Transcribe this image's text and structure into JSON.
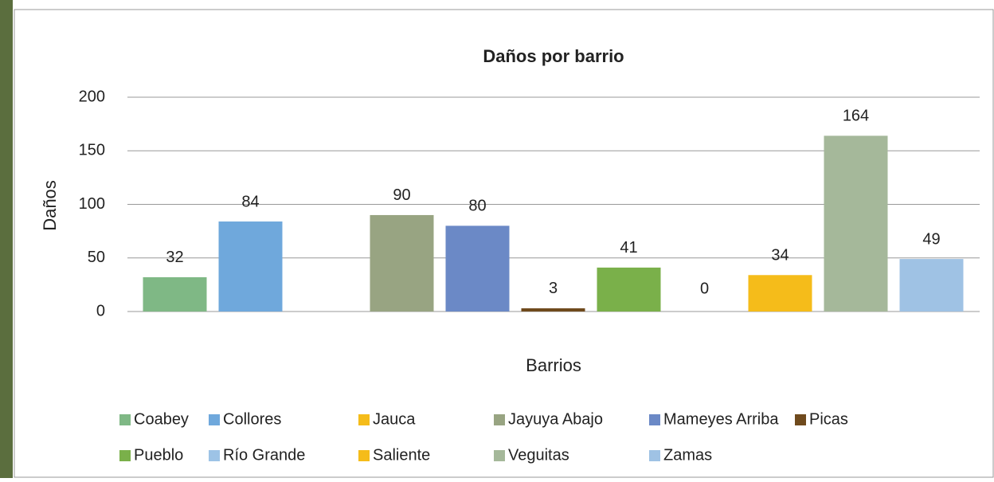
{
  "chart_data": {
    "type": "bar",
    "title": "Daños por barrio",
    "x_label": "Barrios",
    "y_label": "Daños",
    "categories": [
      "Coabey",
      "Collores",
      "Jauca",
      "Jayuya Abajo",
      "Mameyes Arriba",
      "Picas",
      "Pueblo",
      "Río Grande",
      "Saliente",
      "Veguitas",
      "Zamas"
    ],
    "values": [
      32,
      84,
      null,
      90,
      80,
      3,
      41,
      0,
      34,
      164,
      49
    ],
    "colors": [
      "#7fb885",
      "#6fa8dc",
      "#f5bc1a",
      "#98a482",
      "#6b89c6",
      "#6f4a1d",
      "#7ab04a",
      "#9dc3e6",
      "#f5bc1a",
      "#a5b89a",
      "#9fc2e4"
    ],
    "ylim": [
      0,
      200
    ],
    "yticks": [
      0,
      50,
      100,
      150,
      200
    ],
    "grid": true
  }
}
